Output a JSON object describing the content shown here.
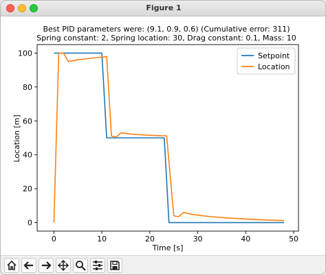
{
  "window": {
    "title": "Figure 1"
  },
  "toolbar": {
    "buttons": [
      "home-icon",
      "back-arrow-icon",
      "forward-arrow-icon",
      "pan-icon",
      "zoom-icon",
      "configure-subplots-icon",
      "save-icon"
    ]
  },
  "chart_data": {
    "type": "line",
    "title": "Best PID parameters were: (9.1, 0.9, 0.6) (Cumulative error: 311)",
    "subtitle": "Spring constant: 2, Spring location: 30, Drag constant: 0.1, Mass: 10",
    "xlabel": "Time [s]",
    "ylabel": "Location [m]",
    "xlim": [
      -3.5,
      51
    ],
    "ylim": [
      -5,
      105
    ],
    "xticks": [
      0,
      10,
      20,
      30,
      40,
      50
    ],
    "yticks": [
      0,
      20,
      40,
      60,
      80,
      100
    ],
    "grid": false,
    "legend_position": "top-right",
    "series": [
      {
        "name": "Setpoint",
        "color": "#1f77b4",
        "points": [
          [
            0,
            100
          ],
          [
            10,
            100
          ],
          [
            11,
            50
          ],
          [
            23,
            50
          ],
          [
            24,
            0
          ],
          [
            48,
            0
          ]
        ]
      },
      {
        "name": "Location",
        "color": "#ff7f0e",
        "points": [
          [
            0,
            0
          ],
          [
            1,
            100
          ],
          [
            2,
            100
          ],
          [
            3,
            95
          ],
          [
            5,
            96
          ],
          [
            7,
            96.7
          ],
          [
            9,
            97.3
          ],
          [
            10,
            97.5
          ],
          [
            11,
            98
          ],
          [
            12,
            51
          ],
          [
            13,
            50.5
          ],
          [
            14,
            53
          ],
          [
            16,
            52.2
          ],
          [
            18,
            51.8
          ],
          [
            20,
            51.5
          ],
          [
            22,
            51.3
          ],
          [
            23.5,
            51.2
          ],
          [
            25,
            4
          ],
          [
            26,
            3.5
          ],
          [
            27,
            6
          ],
          [
            29,
            4.8
          ],
          [
            32,
            3.7
          ],
          [
            36,
            2.8
          ],
          [
            40,
            2.1
          ],
          [
            44,
            1.6
          ],
          [
            48,
            1.2
          ]
        ]
      }
    ]
  }
}
